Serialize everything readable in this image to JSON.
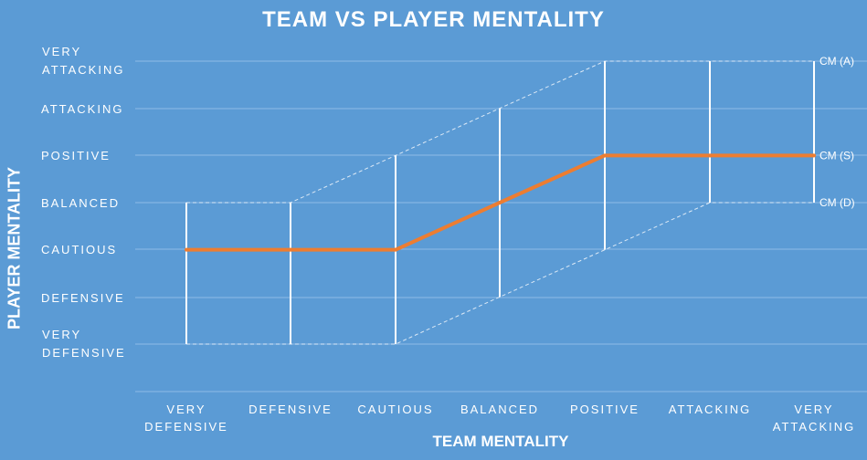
{
  "chart_data": {
    "type": "line",
    "title": "TEAM VS PLAYER MENTALITY",
    "xlabel": "TEAM MENTALITY",
    "ylabel": "PLAYER MENTALITY",
    "categories": [
      "VERY DEFENSIVE",
      "DEFENSIVE",
      "CAUTIOUS",
      "BALANCED",
      "POSITIVE",
      "ATTACKING",
      "VERY ATTACKING"
    ],
    "y_levels": [
      "VERY DEFENSIVE",
      "DEFENSIVE",
      "CAUTIOUS",
      "BALANCED",
      "POSITIVE",
      "ATTACKING",
      "VERY ATTACKING"
    ],
    "y_level_colors": [
      "#ffffff",
      "#ffffff",
      "#ffffff",
      "#ffffff",
      "#ffffff",
      "#ffffff",
      "#e8192c"
    ],
    "series": [
      {
        "name": "CM (S)",
        "values": [
          2,
          2,
          2,
          3,
          4,
          4,
          4
        ],
        "color": "#ed7d31"
      },
      {
        "name": "CM (A)",
        "values": [
          3,
          3,
          4,
          5,
          6,
          6,
          6
        ],
        "color": "#dce9f6"
      },
      {
        "name": "CM (D)",
        "values": [
          0,
          0,
          0,
          1,
          2,
          3,
          3
        ],
        "color": "#dce9f6"
      }
    ],
    "ylim": [
      0,
      6
    ],
    "grid": true
  }
}
